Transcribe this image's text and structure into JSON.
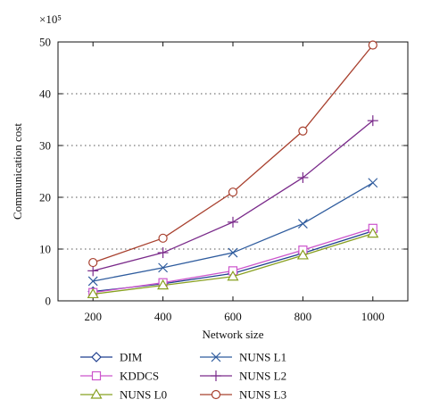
{
  "chart_data": {
    "type": "line",
    "xlabel": "Network size",
    "ylabel": "Communication cost",
    "y_multiplier": "×10⁵",
    "x": [
      200,
      400,
      600,
      800,
      1000
    ],
    "xlim": [
      100,
      1100
    ],
    "ylim": [
      0,
      50
    ],
    "x_ticks": [
      200,
      400,
      600,
      800,
      1000
    ],
    "y_ticks": [
      0,
      10,
      20,
      30,
      40,
      50
    ],
    "grid": "horizontal dotted",
    "legend_position": "bottom",
    "series": [
      {
        "name": "DIM",
        "values": [
          1.8,
          3.3,
          5.3,
          9.2,
          13.5
        ],
        "color": "#1f3f8f",
        "marker": "diamond"
      },
      {
        "name": "KDDCS",
        "values": [
          1.6,
          3.5,
          5.8,
          9.8,
          14.0
        ],
        "color": "#cc55cc",
        "marker": "square"
      },
      {
        "name": "NUNS L0",
        "values": [
          1.3,
          3.0,
          4.7,
          8.8,
          13.0
        ],
        "color": "#88a020",
        "marker": "triangle"
      },
      {
        "name": "NUNS L1",
        "values": [
          3.8,
          6.4,
          9.3,
          14.9,
          22.8
        ],
        "color": "#2f5c9e",
        "marker": "x"
      },
      {
        "name": "NUNS L2",
        "values": [
          5.8,
          9.3,
          15.2,
          23.8,
          34.8
        ],
        "color": "#7a2a8a",
        "marker": "plus"
      },
      {
        "name": "NUNS L3",
        "values": [
          7.4,
          12.1,
          21.0,
          32.8,
          49.4
        ],
        "color": "#a8402e",
        "marker": "circle"
      }
    ]
  }
}
